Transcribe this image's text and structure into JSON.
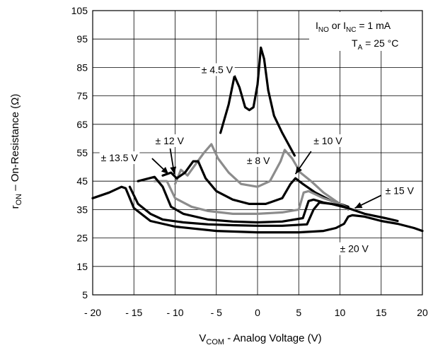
{
  "chart_data": {
    "type": "line",
    "xlim": [
      -20,
      20
    ],
    "ylim": [
      5,
      105
    ],
    "x_ticks": [
      -20,
      -15,
      -10,
      -5,
      0,
      5,
      10,
      15,
      20
    ],
    "x_tick_labels": [
      "- 20",
      "- 15",
      "- 10",
      "- 5",
      "0",
      "5",
      "10",
      "15",
      "20"
    ],
    "y_ticks": [
      5,
      15,
      25,
      35,
      45,
      55,
      65,
      75,
      85,
      95,
      105
    ],
    "y_tick_labels": [
      "5",
      "15",
      "25",
      "35",
      "45",
      "55",
      "65",
      "75",
      "85",
      "95",
      "105"
    ],
    "xlabel": {
      "main": "V",
      "sub": "COM",
      "rest": " - Analog Voltage (V)"
    },
    "ylabel": {
      "main": "r",
      "sub": "ON",
      "rest": "  –  On-Resistance (Ω)"
    },
    "grid": true,
    "conditions": {
      "line1": {
        "a": "I",
        "a_sub": "NO",
        "b": " or I",
        "b_sub": "NC",
        "c": " = 1 mA"
      },
      "line2": {
        "a": "T",
        "a_sub": "A",
        "c": " = 25 °C"
      }
    },
    "series": [
      {
        "name": "± 4.5 V",
        "color": "#000000",
        "x": [
          -4.5,
          -3.5,
          -2.8,
          -2.2,
          -1.5,
          -1.0,
          -0.5,
          0.0,
          0.4,
          0.8,
          1.3,
          2.0,
          3.0,
          4.5
        ],
        "y": [
          62,
          72,
          82,
          78,
          71,
          70,
          71,
          79,
          92,
          88,
          77,
          68,
          62,
          54
        ]
      },
      {
        "name": "± 8 V",
        "color": "#8c8c8c",
        "x": [
          -10,
          -9.3,
          -8.5,
          -7.5,
          -6.5,
          -5.6,
          -4.8,
          -3.5,
          -2,
          0,
          1.5,
          2.8,
          3.3,
          4.2,
          5.2,
          6.5,
          8,
          10,
          11
        ],
        "y": [
          44,
          49,
          47,
          51,
          55,
          58,
          53,
          48,
          44,
          43,
          45,
          52,
          56,
          53,
          48,
          45,
          41,
          37,
          35
        ]
      },
      {
        "name": "± 10 V",
        "color": "#000000",
        "x": [
          -11.5,
          -10.5,
          -9.8,
          -8.8,
          -7.8,
          -7.2,
          -6.3,
          -5,
          -3,
          -1,
          1,
          3,
          4,
          4.6,
          5.5,
          7,
          9,
          11
        ],
        "y": [
          47,
          48,
          46,
          48,
          52,
          52,
          46,
          41.5,
          38.5,
          37,
          37,
          39,
          44,
          46,
          44,
          41,
          38,
          36
        ]
      },
      {
        "name": "± 12 V",
        "color": "#8c8c8c",
        "x": [
          -12.5,
          -11,
          -10,
          -8,
          -6,
          -3,
          0,
          3,
          5,
          5.6,
          6.2,
          8,
          10,
          11
        ],
        "y": [
          45,
          45,
          39,
          36,
          34.5,
          33.5,
          33.5,
          34,
          35,
          41,
          41.5,
          39,
          37,
          35.5
        ]
      },
      {
        "name": "± 13.5 V",
        "color": "#000000",
        "x": [
          -14.5,
          -12.5,
          -11.5,
          -10.5,
          -9,
          -6,
          -3,
          0,
          3,
          5.5,
          6.2,
          6.8,
          8,
          10,
          11
        ],
        "y": [
          45,
          46.5,
          43,
          36,
          33.5,
          31.5,
          30.8,
          30.5,
          30.8,
          32,
          38,
          38.5,
          37.5,
          36.5,
          35.5
        ]
      },
      {
        "name": "± 15 V",
        "color": "#000000",
        "x": [
          -15.5,
          -14.5,
          -13,
          -11.5,
          -9,
          -6,
          -3,
          0,
          3,
          6,
          6.8,
          7.5,
          9,
          11,
          13,
          15.5,
          17
        ],
        "y": [
          43,
          37,
          33.5,
          31.5,
          30.5,
          29.8,
          29.5,
          29.3,
          29.3,
          29.8,
          35,
          37.5,
          37,
          35.5,
          33.5,
          32,
          31
        ]
      },
      {
        "name": "± 20 V",
        "color": "#000000",
        "x": [
          -20,
          -18,
          -16.5,
          -16,
          -15,
          -13,
          -10,
          -5,
          0,
          5,
          8,
          9.5,
          10.5,
          11,
          11.5,
          13,
          15,
          17,
          19,
          20
        ],
        "y": [
          39,
          41,
          43,
          42.5,
          35.5,
          31,
          29,
          27.5,
          27,
          27,
          27.5,
          28.5,
          30,
          32.5,
          33,
          32.5,
          31,
          30,
          28.5,
          27.5
        ]
      }
    ],
    "annotations": [
      {
        "text": "± 4.5 V",
        "x": -6.8,
        "y": 83
      },
      {
        "text": "± 12 V",
        "x": -12.4,
        "y": 58
      },
      {
        "text": "± 13.5 V",
        "x": -19.0,
        "y": 52
      },
      {
        "text": "± 8 V",
        "x": -1.3,
        "y": 51
      },
      {
        "text": "± 10 V",
        "x": 6.8,
        "y": 58
      },
      {
        "text": "± 15 V",
        "x": 15.5,
        "y": 40.5
      },
      {
        "text": "± 20 V",
        "x": 10.0,
        "y": 20
      }
    ],
    "arrows": [
      {
        "from": [
          -10.6,
          56.5
        ],
        "to": [
          -10.1,
          47.5
        ]
      },
      {
        "from": [
          -12.8,
          53
        ],
        "to": [
          -10.8,
          47.5
        ]
      },
      {
        "from": [
          6.5,
          55.5
        ],
        "to": [
          4.6,
          47.5
        ]
      },
      {
        "from": [
          15.0,
          40.0
        ],
        "to": [
          11.8,
          35.5
        ]
      }
    ]
  }
}
